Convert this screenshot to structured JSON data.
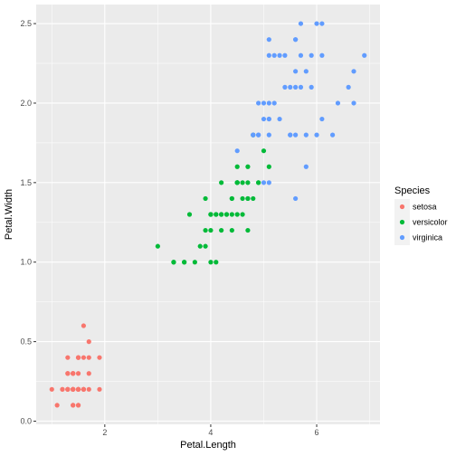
{
  "chart_data": {
    "type": "scatter",
    "title": "",
    "xlabel": "Petal.Length",
    "ylabel": "Petal.Width",
    "xlim": [
      0.705,
      7.195
    ],
    "ylim": [
      -0.02,
      2.62
    ],
    "x_ticks": [
      2,
      4,
      6
    ],
    "x_tick_labels": [
      "2",
      "4",
      "6"
    ],
    "y_ticks": [
      0.0,
      0.5,
      1.0,
      1.5,
      2.0,
      2.5
    ],
    "y_tick_labels": [
      "0.0",
      "0.5",
      "1.0",
      "1.5",
      "2.0",
      "2.5"
    ],
    "grid": true,
    "legend": {
      "title": "Species",
      "placement": "right"
    },
    "series": [
      {
        "name": "setosa",
        "color": "#F8766D",
        "points": [
          [
            1.4,
            0.2
          ],
          [
            1.4,
            0.2
          ],
          [
            1.3,
            0.2
          ],
          [
            1.5,
            0.2
          ],
          [
            1.4,
            0.2
          ],
          [
            1.7,
            0.4
          ],
          [
            1.4,
            0.3
          ],
          [
            1.5,
            0.2
          ],
          [
            1.4,
            0.2
          ],
          [
            1.5,
            0.1
          ],
          [
            1.5,
            0.2
          ],
          [
            1.6,
            0.2
          ],
          [
            1.4,
            0.1
          ],
          [
            1.1,
            0.1
          ],
          [
            1.2,
            0.2
          ],
          [
            1.5,
            0.4
          ],
          [
            1.3,
            0.4
          ],
          [
            1.4,
            0.3
          ],
          [
            1.7,
            0.3
          ],
          [
            1.5,
            0.3
          ],
          [
            1.7,
            0.2
          ],
          [
            1.5,
            0.4
          ],
          [
            1.0,
            0.2
          ],
          [
            1.7,
            0.5
          ],
          [
            1.9,
            0.2
          ],
          [
            1.6,
            0.2
          ],
          [
            1.6,
            0.4
          ],
          [
            1.5,
            0.2
          ],
          [
            1.4,
            0.2
          ],
          [
            1.6,
            0.2
          ],
          [
            1.6,
            0.2
          ],
          [
            1.5,
            0.4
          ],
          [
            1.5,
            0.1
          ],
          [
            1.4,
            0.2
          ],
          [
            1.5,
            0.2
          ],
          [
            1.2,
            0.2
          ],
          [
            1.3,
            0.2
          ],
          [
            1.4,
            0.1
          ],
          [
            1.3,
            0.2
          ],
          [
            1.5,
            0.2
          ],
          [
            1.3,
            0.3
          ],
          [
            1.3,
            0.3
          ],
          [
            1.3,
            0.2
          ],
          [
            1.6,
            0.6
          ],
          [
            1.9,
            0.4
          ],
          [
            1.4,
            0.3
          ],
          [
            1.6,
            0.2
          ],
          [
            1.4,
            0.2
          ],
          [
            1.5,
            0.2
          ],
          [
            1.4,
            0.2
          ]
        ]
      },
      {
        "name": "versicolor",
        "color": "#00BA38",
        "points": [
          [
            4.7,
            1.4
          ],
          [
            4.5,
            1.5
          ],
          [
            4.9,
            1.5
          ],
          [
            4.0,
            1.3
          ],
          [
            4.6,
            1.5
          ],
          [
            4.5,
            1.3
          ],
          [
            4.7,
            1.6
          ],
          [
            3.3,
            1.0
          ],
          [
            4.6,
            1.3
          ],
          [
            3.9,
            1.4
          ],
          [
            3.5,
            1.0
          ],
          [
            4.2,
            1.5
          ],
          [
            4.0,
            1.0
          ],
          [
            4.7,
            1.4
          ],
          [
            3.6,
            1.3
          ],
          [
            4.4,
            1.4
          ],
          [
            4.5,
            1.5
          ],
          [
            4.1,
            1.0
          ],
          [
            4.5,
            1.5
          ],
          [
            3.9,
            1.1
          ],
          [
            4.8,
            1.8
          ],
          [
            4.0,
            1.3
          ],
          [
            4.9,
            1.5
          ],
          [
            4.7,
            1.2
          ],
          [
            4.3,
            1.3
          ],
          [
            4.4,
            1.4
          ],
          [
            4.8,
            1.4
          ],
          [
            5.0,
            1.7
          ],
          [
            4.5,
            1.5
          ],
          [
            3.5,
            1.0
          ],
          [
            3.8,
            1.1
          ],
          [
            3.7,
            1.0
          ],
          [
            3.9,
            1.2
          ],
          [
            5.1,
            1.6
          ],
          [
            4.5,
            1.5
          ],
          [
            4.5,
            1.6
          ],
          [
            4.7,
            1.5
          ],
          [
            4.4,
            1.3
          ],
          [
            4.1,
            1.3
          ],
          [
            4.0,
            1.3
          ],
          [
            4.4,
            1.2
          ],
          [
            4.6,
            1.4
          ],
          [
            4.0,
            1.2
          ],
          [
            3.3,
            1.0
          ],
          [
            4.2,
            1.3
          ],
          [
            4.2,
            1.2
          ],
          [
            4.2,
            1.3
          ],
          [
            4.3,
            1.3
          ],
          [
            3.0,
            1.1
          ],
          [
            4.1,
            1.3
          ]
        ]
      },
      {
        "name": "virginica",
        "color": "#619CFF",
        "points": [
          [
            6.0,
            2.5
          ],
          [
            5.1,
            1.9
          ],
          [
            5.9,
            2.1
          ],
          [
            5.6,
            1.8
          ],
          [
            5.8,
            2.2
          ],
          [
            6.6,
            2.1
          ],
          [
            4.5,
            1.7
          ],
          [
            6.3,
            1.8
          ],
          [
            5.8,
            1.8
          ],
          [
            6.1,
            2.5
          ],
          [
            5.1,
            2.0
          ],
          [
            5.3,
            1.9
          ],
          [
            5.5,
            2.1
          ],
          [
            5.0,
            2.0
          ],
          [
            5.1,
            2.4
          ],
          [
            5.3,
            2.3
          ],
          [
            5.5,
            1.8
          ],
          [
            6.7,
            2.2
          ],
          [
            6.9,
            2.3
          ],
          [
            5.0,
            1.5
          ],
          [
            5.7,
            2.3
          ],
          [
            4.9,
            2.0
          ],
          [
            6.7,
            2.0
          ],
          [
            4.9,
            1.8
          ],
          [
            5.7,
            2.1
          ],
          [
            6.0,
            1.8
          ],
          [
            4.8,
            1.8
          ],
          [
            4.9,
            1.8
          ],
          [
            5.6,
            2.1
          ],
          [
            5.8,
            1.6
          ],
          [
            6.1,
            1.9
          ],
          [
            6.4,
            2.0
          ],
          [
            5.6,
            2.2
          ],
          [
            5.1,
            1.5
          ],
          [
            5.6,
            1.4
          ],
          [
            6.1,
            2.3
          ],
          [
            5.6,
            2.4
          ],
          [
            5.5,
            1.8
          ],
          [
            4.8,
            1.8
          ],
          [
            5.4,
            2.1
          ],
          [
            5.6,
            2.4
          ],
          [
            5.1,
            2.3
          ],
          [
            5.1,
            1.9
          ],
          [
            5.9,
            2.3
          ],
          [
            5.7,
            2.5
          ],
          [
            5.2,
            2.3
          ],
          [
            5.0,
            1.9
          ],
          [
            5.2,
            2.0
          ],
          [
            5.4,
            2.3
          ],
          [
            5.1,
            1.8
          ]
        ]
      }
    ]
  }
}
